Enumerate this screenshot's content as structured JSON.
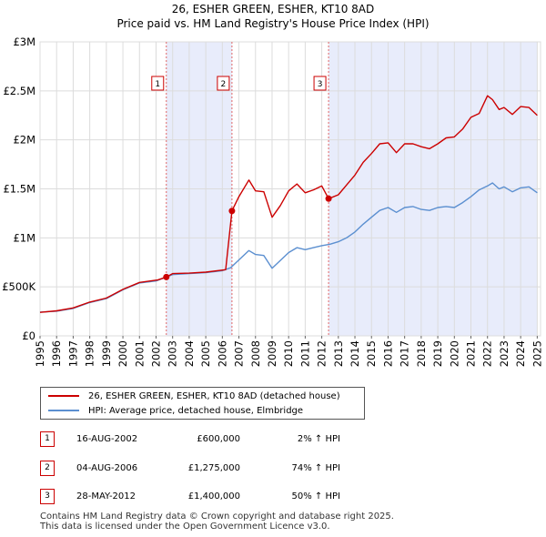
{
  "chart_data": {
    "type": "line",
    "title": "26, ESHER GREEN, ESHER, KT10 8AD",
    "subtitle": "Price paid vs. HM Land Registry's House Price Index (HPI)",
    "xlabel": "",
    "ylabel": "",
    "xlim": [
      1995,
      2025.2
    ],
    "ylim": [
      0,
      3000000
    ],
    "x_ticks": [
      "1995",
      "1996",
      "1997",
      "1998",
      "1999",
      "2000",
      "2001",
      "2002",
      "2003",
      "2004",
      "2005",
      "2006",
      "2007",
      "2008",
      "2009",
      "2010",
      "2011",
      "2012",
      "2013",
      "2014",
      "2015",
      "2016",
      "2017",
      "2018",
      "2019",
      "2020",
      "2021",
      "2022",
      "2023",
      "2024",
      "2025"
    ],
    "y_ticks": [
      {
        "value": 0,
        "label": "£0"
      },
      {
        "value": 500000,
        "label": "£500K"
      },
      {
        "value": 1000000,
        "label": "£1M"
      },
      {
        "value": 1500000,
        "label": "£1.5M"
      },
      {
        "value": 2000000,
        "label": "£2M"
      },
      {
        "value": 2500000,
        "label": "£2.5M"
      },
      {
        "value": 3000000,
        "label": "£3M"
      }
    ],
    "grid": true,
    "series": [
      {
        "name": "26, ESHER GREEN, ESHER, KT10 8AD (detached house)",
        "color": "#cc0000",
        "points": [
          [
            1995,
            240000
          ],
          [
            1996,
            255000
          ],
          [
            1997,
            285000
          ],
          [
            1998,
            345000
          ],
          [
            1999,
            385000
          ],
          [
            2000,
            475000
          ],
          [
            2001,
            545000
          ],
          [
            2002.1,
            570000
          ],
          [
            2002.62,
            600000
          ],
          [
            2003,
            635000
          ],
          [
            2004,
            640000
          ],
          [
            2005,
            650000
          ],
          [
            2006.2,
            675000
          ],
          [
            2006.58,
            1275000
          ],
          [
            2007,
            1420000
          ],
          [
            2007.6,
            1590000
          ],
          [
            2008,
            1480000
          ],
          [
            2008.5,
            1470000
          ],
          [
            2009,
            1210000
          ],
          [
            2009.5,
            1330000
          ],
          [
            2010,
            1480000
          ],
          [
            2010.5,
            1550000
          ],
          [
            2011,
            1460000
          ],
          [
            2011.5,
            1490000
          ],
          [
            2012,
            1530000
          ],
          [
            2012.41,
            1400000
          ],
          [
            2013,
            1440000
          ],
          [
            2013.5,
            1540000
          ],
          [
            2014,
            1640000
          ],
          [
            2014.5,
            1770000
          ],
          [
            2015,
            1860000
          ],
          [
            2015.5,
            1960000
          ],
          [
            2016,
            1970000
          ],
          [
            2016.5,
            1870000
          ],
          [
            2017,
            1960000
          ],
          [
            2017.5,
            1960000
          ],
          [
            2018,
            1930000
          ],
          [
            2018.5,
            1910000
          ],
          [
            2019,
            1960000
          ],
          [
            2019.5,
            2020000
          ],
          [
            2020,
            2030000
          ],
          [
            2020.5,
            2110000
          ],
          [
            2021,
            2230000
          ],
          [
            2021.5,
            2270000
          ],
          [
            2022,
            2450000
          ],
          [
            2022.3,
            2410000
          ],
          [
            2022.7,
            2310000
          ],
          [
            2023,
            2330000
          ],
          [
            2023.5,
            2260000
          ],
          [
            2024,
            2340000
          ],
          [
            2024.5,
            2330000
          ],
          [
            2025,
            2250000
          ]
        ]
      },
      {
        "name": "HPI: Average price, detached house, Elmbridge",
        "color": "#5b8fd0",
        "points": [
          [
            1995,
            242000
          ],
          [
            1996,
            252000
          ],
          [
            1997,
            280000
          ],
          [
            1998,
            340000
          ],
          [
            1999,
            380000
          ],
          [
            2000,
            470000
          ],
          [
            2001,
            540000
          ],
          [
            2002,
            560000
          ],
          [
            2003,
            625000
          ],
          [
            2004,
            635000
          ],
          [
            2005,
            645000
          ],
          [
            2006,
            665000
          ],
          [
            2006.5,
            695000
          ],
          [
            2007,
            775000
          ],
          [
            2007.6,
            870000
          ],
          [
            2008,
            830000
          ],
          [
            2008.5,
            820000
          ],
          [
            2009,
            690000
          ],
          [
            2009.5,
            770000
          ],
          [
            2010,
            850000
          ],
          [
            2010.5,
            900000
          ],
          [
            2011,
            880000
          ],
          [
            2011.5,
            900000
          ],
          [
            2012,
            920000
          ],
          [
            2012.5,
            935000
          ],
          [
            2013,
            960000
          ],
          [
            2013.5,
            1000000
          ],
          [
            2014,
            1060000
          ],
          [
            2014.5,
            1140000
          ],
          [
            2015,
            1210000
          ],
          [
            2015.5,
            1280000
          ],
          [
            2016,
            1310000
          ],
          [
            2016.5,
            1260000
          ],
          [
            2017,
            1310000
          ],
          [
            2017.5,
            1320000
          ],
          [
            2018,
            1290000
          ],
          [
            2018.5,
            1280000
          ],
          [
            2019,
            1310000
          ],
          [
            2019.5,
            1320000
          ],
          [
            2020,
            1310000
          ],
          [
            2020.5,
            1360000
          ],
          [
            2021,
            1420000
          ],
          [
            2021.5,
            1490000
          ],
          [
            2022,
            1530000
          ],
          [
            2022.3,
            1560000
          ],
          [
            2022.7,
            1500000
          ],
          [
            2023,
            1520000
          ],
          [
            2023.5,
            1470000
          ],
          [
            2024,
            1510000
          ],
          [
            2024.5,
            1520000
          ],
          [
            2025,
            1460000
          ]
        ]
      }
    ],
    "shaded_periods": [
      [
        2002.62,
        2006.58
      ],
      [
        2012.41,
        2025
      ]
    ],
    "markers": [
      {
        "label": "1",
        "x": 2002.62,
        "y": 600000
      },
      {
        "label": "2",
        "x": 2006.58,
        "y": 1275000
      },
      {
        "label": "3",
        "x": 2012.41,
        "y": 1400000
      }
    ]
  },
  "legend": {
    "property_label": "26, ESHER GREEN, ESHER, KT10 8AD (detached house)",
    "hpi_label": "HPI: Average price, detached house, Elmbridge"
  },
  "transactions": [
    {
      "num": "1",
      "date": "16-AUG-2002",
      "price": "£600,000",
      "hpi": "2% ↑ HPI"
    },
    {
      "num": "2",
      "date": "04-AUG-2006",
      "price": "£1,275,000",
      "hpi": "74% ↑ HPI"
    },
    {
      "num": "3",
      "date": "28-MAY-2012",
      "price": "£1,400,000",
      "hpi": "50% ↑ HPI"
    }
  ],
  "footer": {
    "line1": "Contains HM Land Registry data © Crown copyright and database right 2025.",
    "line2": "This data is licensed under the Open Government Licence v3.0."
  }
}
